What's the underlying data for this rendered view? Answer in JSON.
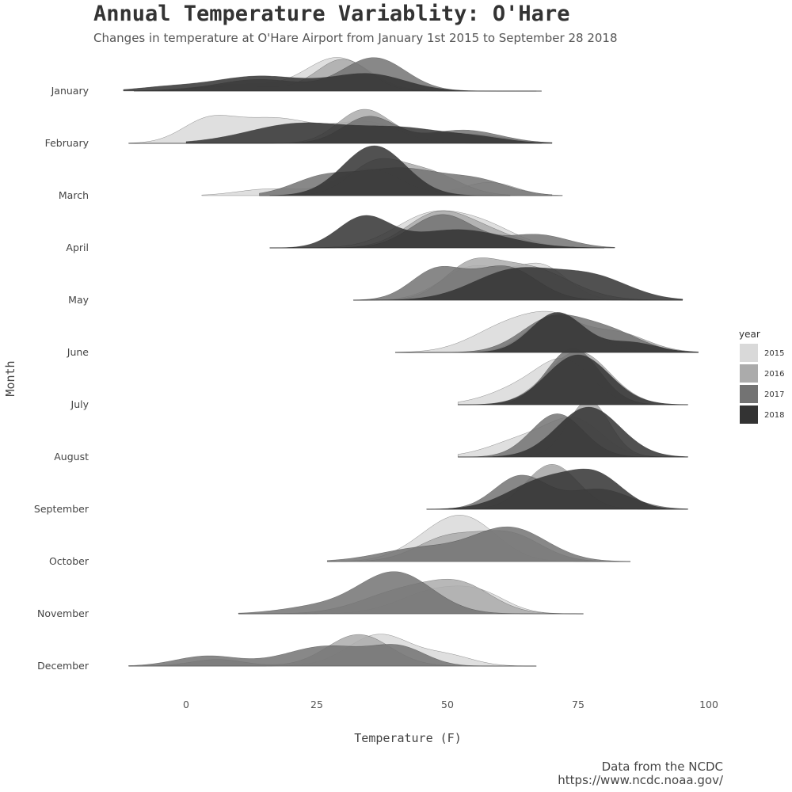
{
  "chart_data": {
    "type": "ridgeline",
    "title": "Annual Temperature Variablity: O'Hare",
    "subtitle": "Changes in temperature at O'Hare Airport from January 1st 2015 to September 28 2018",
    "xlabel": "Temperature (F)",
    "ylabel": "Month",
    "xlim": [
      -12,
      100
    ],
    "x_ticks": [
      0,
      25,
      50,
      75,
      100
    ],
    "grid": false,
    "legend_title": "year",
    "legend_position": "right",
    "caption": [
      "Data from the NCDC",
      "https://www.ncdc.noaa.gov/"
    ],
    "categories": [
      "January",
      "February",
      "March",
      "April",
      "May",
      "June",
      "July",
      "August",
      "September",
      "October",
      "November",
      "December"
    ],
    "series": [
      {
        "name": "2015",
        "color": "#d9d9d9"
      },
      {
        "name": "2016",
        "color": "#ababab"
      },
      {
        "name": "2017",
        "color": "#737373"
      },
      {
        "name": "2018",
        "color": "#333333"
      }
    ],
    "densities": [
      {
        "month": "January",
        "curves": [
          {
            "year": "2015",
            "range": [
              -10,
              68
            ],
            "peaks": [
              [
                10,
                8,
                0.2
              ],
              [
                29,
                6,
                1.0
              ]
            ]
          },
          {
            "year": "2016",
            "range": [
              -10,
              68
            ],
            "peaks": [
              [
                10,
                8,
                0.15
              ],
              [
                30,
                5,
                0.95
              ]
            ]
          },
          {
            "year": "2017",
            "range": [
              -10,
              68
            ],
            "peaks": [
              [
                14,
                8,
                0.35
              ],
              [
                36,
                6,
                1.0
              ]
            ]
          },
          {
            "year": "2018",
            "range": [
              -12,
              67
            ],
            "peaks": [
              [
                14,
                9,
                0.45
              ],
              [
                35,
                7,
                0.5
              ],
              [
                -4,
                6,
                0.1
              ]
            ]
          }
        ]
      },
      {
        "month": "February",
        "curves": [
          {
            "year": "2015",
            "range": [
              -11,
              68
            ],
            "peaks": [
              [
                4,
                5,
                0.6
              ],
              [
                17,
                8,
                0.75
              ],
              [
                35,
                6,
                0.6
              ]
            ]
          },
          {
            "year": "2016",
            "range": [
              -11,
              70
            ],
            "peaks": [
              [
                34,
                5,
                1.0
              ],
              [
                52,
                8,
                0.3
              ]
            ]
          },
          {
            "year": "2017",
            "range": [
              -11,
              70
            ],
            "peaks": [
              [
                35,
                5,
                0.8
              ],
              [
                53,
                7,
                0.4
              ]
            ]
          },
          {
            "year": "2018",
            "range": [
              0,
              70
            ],
            "peaks": [
              [
                22,
                10,
                0.6
              ],
              [
                42,
                8,
                0.4
              ],
              [
                56,
                6,
                0.15
              ]
            ]
          }
        ]
      },
      {
        "month": "March",
        "curves": [
          {
            "year": "2015",
            "range": [
              3,
              72
            ],
            "peaks": [
              [
                16,
                6,
                0.2
              ],
              [
                35,
                6,
                0.8
              ],
              [
                58,
                5,
                0.4
              ]
            ]
          },
          {
            "year": "2016",
            "range": [
              14,
              72
            ],
            "peaks": [
              [
                36,
                5,
                0.9
              ],
              [
                46,
                6,
                0.7
              ]
            ]
          },
          {
            "year": "2017",
            "range": [
              14,
              70
            ],
            "peaks": [
              [
                26,
                6,
                0.5
              ],
              [
                41,
                8,
                0.8
              ],
              [
                56,
                6,
                0.4
              ]
            ]
          },
          {
            "year": "2018",
            "range": [
              16,
              62
            ],
            "peaks": [
              [
                36,
                6,
                1.5
              ]
            ]
          }
        ]
      },
      {
        "month": "April",
        "curves": [
          {
            "year": "2015",
            "range": [
              16,
              80
            ],
            "peaks": [
              [
                47,
                7,
                1.0
              ],
              [
                58,
                6,
                0.5
              ]
            ]
          },
          {
            "year": "2016",
            "range": [
              16,
              80
            ],
            "peaks": [
              [
                48,
                6,
                1.0
              ],
              [
                58,
                6,
                0.4
              ]
            ]
          },
          {
            "year": "2017",
            "range": [
              16,
              82
            ],
            "peaks": [
              [
                49,
                6,
                1.0
              ],
              [
                67,
                6,
                0.4
              ]
            ]
          },
          {
            "year": "2018",
            "range": [
              16,
              82
            ],
            "peaks": [
              [
                34,
                5,
                0.9
              ],
              [
                52,
                9,
                0.55
              ]
            ]
          }
        ]
      },
      {
        "month": "May",
        "curves": [
          {
            "year": "2015",
            "range": [
              32,
              95
            ],
            "peaks": [
              [
                55,
                6,
                1.0
              ],
              [
                68,
                5,
                1.0
              ]
            ]
          },
          {
            "year": "2016",
            "range": [
              32,
              95
            ],
            "peaks": [
              [
                54,
                5,
                0.8
              ],
              [
                65,
                8,
                1.0
              ]
            ]
          },
          {
            "year": "2017",
            "range": [
              32,
              95
            ],
            "peaks": [
              [
                48,
                5,
                0.9
              ],
              [
                61,
                6,
                1.0
              ]
            ]
          },
          {
            "year": "2018",
            "range": [
              32,
              95
            ],
            "peaks": [
              [
                63,
                8,
                0.9
              ],
              [
                78,
                7,
                0.65
              ]
            ]
          }
        ]
      },
      {
        "month": "June",
        "curves": [
          {
            "year": "2015",
            "range": [
              40,
              98
            ],
            "peaks": [
              [
                62,
                7,
                0.8
              ],
              [
                72,
                6,
                0.85
              ]
            ]
          },
          {
            "year": "2016",
            "range": [
              40,
              98
            ],
            "peaks": [
              [
                70,
                5,
                1.0
              ],
              [
                82,
                6,
                0.6
              ]
            ]
          },
          {
            "year": "2017",
            "range": [
              40,
              98
            ],
            "peaks": [
              [
                70,
                6,
                1.0
              ],
              [
                81,
                6,
                0.6
              ]
            ]
          },
          {
            "year": "2018",
            "range": [
              40,
              98
            ],
            "peaks": [
              [
                71,
                5,
                1.2
              ],
              [
                85,
                5,
                0.3
              ]
            ]
          }
        ]
      },
      {
        "month": "July",
        "curves": [
          {
            "year": "2015",
            "range": [
              52,
              96
            ],
            "peaks": [
              [
                66,
                7,
                0.6
              ],
              [
                73,
                5,
                1.0
              ]
            ]
          },
          {
            "year": "2016",
            "range": [
              52,
              96
            ],
            "peaks": [
              [
                75,
                6,
                1.6
              ]
            ]
          },
          {
            "year": "2017",
            "range": [
              52,
              96
            ],
            "peaks": [
              [
                74,
                5,
                1.7
              ]
            ]
          },
          {
            "year": "2018",
            "range": [
              52,
              96
            ],
            "peaks": [
              [
                75,
                6,
                1.5
              ]
            ]
          }
        ]
      },
      {
        "month": "August",
        "curves": [
          {
            "year": "2015",
            "range": [
              52,
              96
            ],
            "peaks": [
              [
                66,
                7,
                0.6
              ],
              [
                75,
                5,
                0.9
              ]
            ]
          },
          {
            "year": "2016",
            "range": [
              52,
              96
            ],
            "peaks": [
              [
                77,
                4,
                1.7
              ]
            ]
          },
          {
            "year": "2017",
            "range": [
              52,
              96
            ],
            "peaks": [
              [
                71,
                5,
                1.3
              ]
            ]
          },
          {
            "year": "2018",
            "range": [
              52,
              96
            ],
            "peaks": [
              [
                77,
                6,
                1.5
              ]
            ]
          }
        ]
      },
      {
        "month": "September",
        "curves": [
          {
            "year": "2015",
            "range": [
              46,
              96
            ],
            "peaks": [
              [
                70,
                5,
                1.3
              ]
            ]
          },
          {
            "year": "2016",
            "range": [
              46,
              96
            ],
            "peaks": [
              [
                70,
                5,
                1.35
              ]
            ]
          },
          {
            "year": "2017",
            "range": [
              46,
              96
            ],
            "peaks": [
              [
                64,
                5,
                1.0
              ],
              [
                79,
                6,
                0.6
              ]
            ]
          },
          {
            "year": "2018",
            "range": [
              46,
              96
            ],
            "peaks": [
              [
                69,
                7,
                0.9
              ],
              [
                79,
                5,
                0.8
              ]
            ]
          }
        ]
      },
      {
        "month": "October",
        "curves": [
          {
            "year": "2015",
            "range": [
              27,
              85
            ],
            "peaks": [
              [
                54,
                6,
                1.1
              ],
              [
                47,
                6,
                0.5
              ]
            ]
          },
          {
            "year": "2016",
            "range": [
              27,
              85
            ],
            "peaks": [
              [
                50,
                6,
                0.7
              ],
              [
                62,
                6,
                0.8
              ]
            ]
          },
          {
            "year": "2017",
            "range": [
              27,
              85
            ],
            "peaks": [
              [
                62,
                7,
                1.0
              ],
              [
                45,
                8,
                0.4
              ]
            ]
          },
          {
            "year": "2018",
            "range": [
              27,
              85
            ],
            "peaks": []
          }
        ]
      },
      {
        "month": "November",
        "curves": [
          {
            "year": "2015",
            "range": [
              10,
              76
            ],
            "peaks": [
              [
                48,
                7,
                0.7
              ],
              [
                57,
                5,
                0.4
              ]
            ]
          },
          {
            "year": "2016",
            "range": [
              10,
              76
            ],
            "peaks": [
              [
                42,
                8,
                0.7
              ],
              [
                53,
                6,
                0.7
              ]
            ]
          },
          {
            "year": "2017",
            "range": [
              10,
              76
            ],
            "peaks": [
              [
                40,
                7,
                1.25
              ],
              [
                25,
                7,
                0.2
              ]
            ]
          },
          {
            "year": "2018",
            "range": [
              10,
              76
            ],
            "peaks": []
          }
        ]
      },
      {
        "month": "December",
        "curves": [
          {
            "year": "2015",
            "range": [
              -11,
              67
            ],
            "peaks": [
              [
                37,
                6,
                0.95
              ],
              [
                50,
                5,
                0.3
              ]
            ]
          },
          {
            "year": "2016",
            "range": [
              -11,
              67
            ],
            "peaks": [
              [
                6,
                5,
                0.2
              ],
              [
                33,
                6,
                0.95
              ]
            ]
          },
          {
            "year": "2017",
            "range": [
              -11,
              67
            ],
            "peaks": [
              [
                4,
                6,
                0.3
              ],
              [
                27,
                8,
                0.6
              ],
              [
                41,
                5,
                0.5
              ]
            ]
          },
          {
            "year": "2018",
            "range": [
              -11,
              67
            ],
            "peaks": []
          }
        ]
      }
    ]
  }
}
